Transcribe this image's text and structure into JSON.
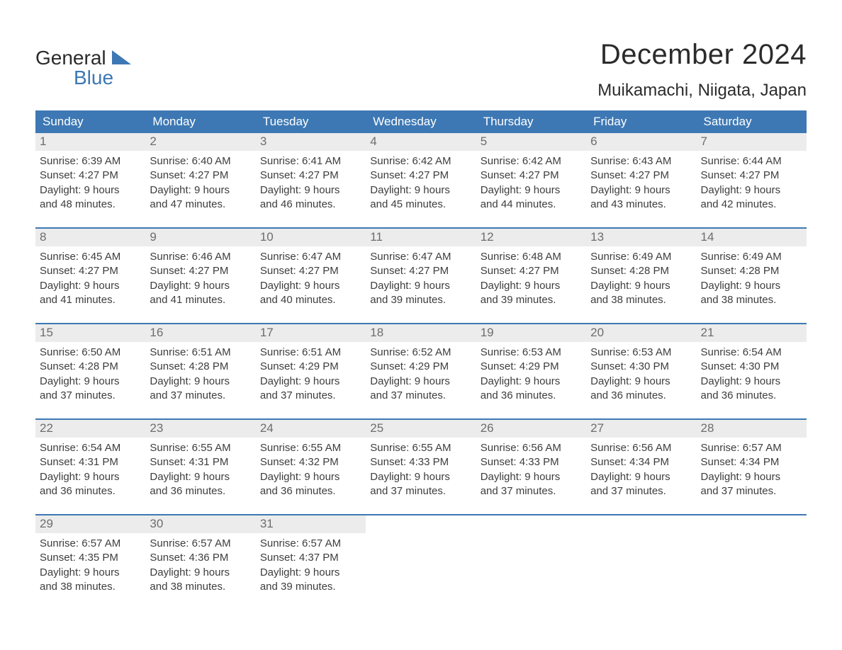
{
  "colors": {
    "header_bg": "#3d78b4",
    "header_text": "#ffffff",
    "daynum_bg": "#ececec",
    "daynum_text": "#6d6d6d",
    "body_text": "#3d3d3d",
    "week_border": "#3d78b4",
    "page_bg": "#ffffff",
    "logo_dark": "#2b2b2b",
    "logo_blue": "#3d78b4"
  },
  "logo": {
    "text1": "General",
    "text2": "Blue"
  },
  "title": "December 2024",
  "location": "Muikamachi, Niigata, Japan",
  "day_names": [
    "Sunday",
    "Monday",
    "Tuesday",
    "Wednesday",
    "Thursday",
    "Friday",
    "Saturday"
  ],
  "weeks": [
    [
      {
        "n": "1",
        "sunrise": "Sunrise: 6:39 AM",
        "sunset": "Sunset: 4:27 PM",
        "dl1": "Daylight: 9 hours",
        "dl2": "and 48 minutes."
      },
      {
        "n": "2",
        "sunrise": "Sunrise: 6:40 AM",
        "sunset": "Sunset: 4:27 PM",
        "dl1": "Daylight: 9 hours",
        "dl2": "and 47 minutes."
      },
      {
        "n": "3",
        "sunrise": "Sunrise: 6:41 AM",
        "sunset": "Sunset: 4:27 PM",
        "dl1": "Daylight: 9 hours",
        "dl2": "and 46 minutes."
      },
      {
        "n": "4",
        "sunrise": "Sunrise: 6:42 AM",
        "sunset": "Sunset: 4:27 PM",
        "dl1": "Daylight: 9 hours",
        "dl2": "and 45 minutes."
      },
      {
        "n": "5",
        "sunrise": "Sunrise: 6:42 AM",
        "sunset": "Sunset: 4:27 PM",
        "dl1": "Daylight: 9 hours",
        "dl2": "and 44 minutes."
      },
      {
        "n": "6",
        "sunrise": "Sunrise: 6:43 AM",
        "sunset": "Sunset: 4:27 PM",
        "dl1": "Daylight: 9 hours",
        "dl2": "and 43 minutes."
      },
      {
        "n": "7",
        "sunrise": "Sunrise: 6:44 AM",
        "sunset": "Sunset: 4:27 PM",
        "dl1": "Daylight: 9 hours",
        "dl2": "and 42 minutes."
      }
    ],
    [
      {
        "n": "8",
        "sunrise": "Sunrise: 6:45 AM",
        "sunset": "Sunset: 4:27 PM",
        "dl1": "Daylight: 9 hours",
        "dl2": "and 41 minutes."
      },
      {
        "n": "9",
        "sunrise": "Sunrise: 6:46 AM",
        "sunset": "Sunset: 4:27 PM",
        "dl1": "Daylight: 9 hours",
        "dl2": "and 41 minutes."
      },
      {
        "n": "10",
        "sunrise": "Sunrise: 6:47 AM",
        "sunset": "Sunset: 4:27 PM",
        "dl1": "Daylight: 9 hours",
        "dl2": "and 40 minutes."
      },
      {
        "n": "11",
        "sunrise": "Sunrise: 6:47 AM",
        "sunset": "Sunset: 4:27 PM",
        "dl1": "Daylight: 9 hours",
        "dl2": "and 39 minutes."
      },
      {
        "n": "12",
        "sunrise": "Sunrise: 6:48 AM",
        "sunset": "Sunset: 4:27 PM",
        "dl1": "Daylight: 9 hours",
        "dl2": "and 39 minutes."
      },
      {
        "n": "13",
        "sunrise": "Sunrise: 6:49 AM",
        "sunset": "Sunset: 4:28 PM",
        "dl1": "Daylight: 9 hours",
        "dl2": "and 38 minutes."
      },
      {
        "n": "14",
        "sunrise": "Sunrise: 6:49 AM",
        "sunset": "Sunset: 4:28 PM",
        "dl1": "Daylight: 9 hours",
        "dl2": "and 38 minutes."
      }
    ],
    [
      {
        "n": "15",
        "sunrise": "Sunrise: 6:50 AM",
        "sunset": "Sunset: 4:28 PM",
        "dl1": "Daylight: 9 hours",
        "dl2": "and 37 minutes."
      },
      {
        "n": "16",
        "sunrise": "Sunrise: 6:51 AM",
        "sunset": "Sunset: 4:28 PM",
        "dl1": "Daylight: 9 hours",
        "dl2": "and 37 minutes."
      },
      {
        "n": "17",
        "sunrise": "Sunrise: 6:51 AM",
        "sunset": "Sunset: 4:29 PM",
        "dl1": "Daylight: 9 hours",
        "dl2": "and 37 minutes."
      },
      {
        "n": "18",
        "sunrise": "Sunrise: 6:52 AM",
        "sunset": "Sunset: 4:29 PM",
        "dl1": "Daylight: 9 hours",
        "dl2": "and 37 minutes."
      },
      {
        "n": "19",
        "sunrise": "Sunrise: 6:53 AM",
        "sunset": "Sunset: 4:29 PM",
        "dl1": "Daylight: 9 hours",
        "dl2": "and 36 minutes."
      },
      {
        "n": "20",
        "sunrise": "Sunrise: 6:53 AM",
        "sunset": "Sunset: 4:30 PM",
        "dl1": "Daylight: 9 hours",
        "dl2": "and 36 minutes."
      },
      {
        "n": "21",
        "sunrise": "Sunrise: 6:54 AM",
        "sunset": "Sunset: 4:30 PM",
        "dl1": "Daylight: 9 hours",
        "dl2": "and 36 minutes."
      }
    ],
    [
      {
        "n": "22",
        "sunrise": "Sunrise: 6:54 AM",
        "sunset": "Sunset: 4:31 PM",
        "dl1": "Daylight: 9 hours",
        "dl2": "and 36 minutes."
      },
      {
        "n": "23",
        "sunrise": "Sunrise: 6:55 AM",
        "sunset": "Sunset: 4:31 PM",
        "dl1": "Daylight: 9 hours",
        "dl2": "and 36 minutes."
      },
      {
        "n": "24",
        "sunrise": "Sunrise: 6:55 AM",
        "sunset": "Sunset: 4:32 PM",
        "dl1": "Daylight: 9 hours",
        "dl2": "and 36 minutes."
      },
      {
        "n": "25",
        "sunrise": "Sunrise: 6:55 AM",
        "sunset": "Sunset: 4:33 PM",
        "dl1": "Daylight: 9 hours",
        "dl2": "and 37 minutes."
      },
      {
        "n": "26",
        "sunrise": "Sunrise: 6:56 AM",
        "sunset": "Sunset: 4:33 PM",
        "dl1": "Daylight: 9 hours",
        "dl2": "and 37 minutes."
      },
      {
        "n": "27",
        "sunrise": "Sunrise: 6:56 AM",
        "sunset": "Sunset: 4:34 PM",
        "dl1": "Daylight: 9 hours",
        "dl2": "and 37 minutes."
      },
      {
        "n": "28",
        "sunrise": "Sunrise: 6:57 AM",
        "sunset": "Sunset: 4:34 PM",
        "dl1": "Daylight: 9 hours",
        "dl2": "and 37 minutes."
      }
    ],
    [
      {
        "n": "29",
        "sunrise": "Sunrise: 6:57 AM",
        "sunset": "Sunset: 4:35 PM",
        "dl1": "Daylight: 9 hours",
        "dl2": "and 38 minutes."
      },
      {
        "n": "30",
        "sunrise": "Sunrise: 6:57 AM",
        "sunset": "Sunset: 4:36 PM",
        "dl1": "Daylight: 9 hours",
        "dl2": "and 38 minutes."
      },
      {
        "n": "31",
        "sunrise": "Sunrise: 6:57 AM",
        "sunset": "Sunset: 4:37 PM",
        "dl1": "Daylight: 9 hours",
        "dl2": "and 39 minutes."
      },
      {
        "empty": true,
        "n": "",
        "sunrise": "",
        "sunset": "",
        "dl1": "",
        "dl2": ""
      },
      {
        "empty": true,
        "n": "",
        "sunrise": "",
        "sunset": "",
        "dl1": "",
        "dl2": ""
      },
      {
        "empty": true,
        "n": "",
        "sunrise": "",
        "sunset": "",
        "dl1": "",
        "dl2": ""
      },
      {
        "empty": true,
        "n": "",
        "sunrise": "",
        "sunset": "",
        "dl1": "",
        "dl2": ""
      }
    ]
  ]
}
